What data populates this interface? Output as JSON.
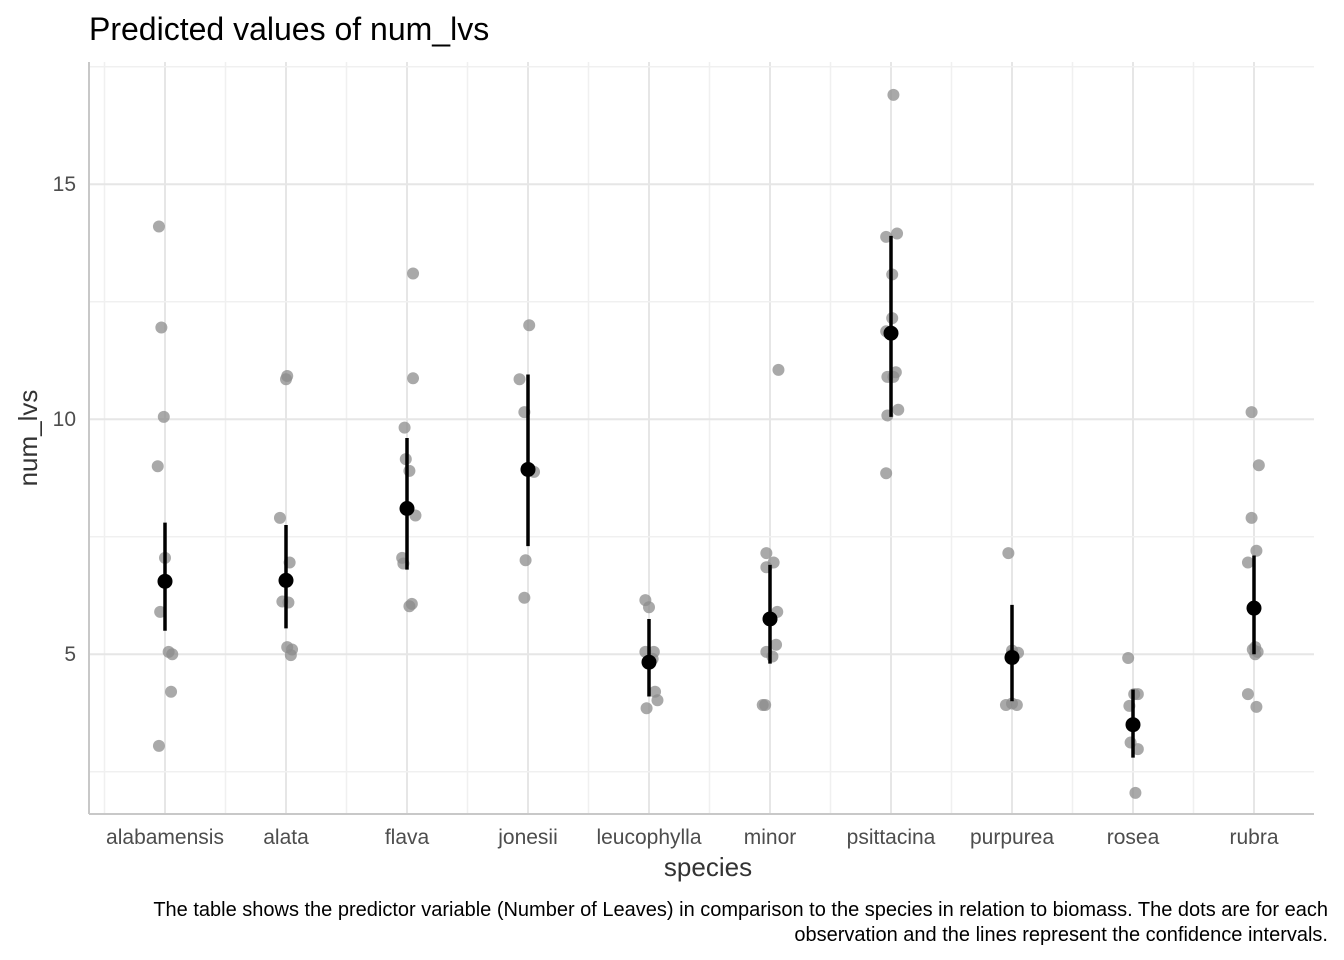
{
  "chart_data": {
    "type": "scatter",
    "title": "Predicted values of num_lvs",
    "xlabel": "species",
    "ylabel": "num_lvs",
    "caption_lines": [
      "The table shows the predictor variable (Number of Leaves) in comparison to the species in relation to biomass. The dots are for each",
      "observation and the lines represent the confidence intervals."
    ],
    "categories": [
      "alabamensis",
      "alata",
      "flava",
      "jonesii",
      "leucophylla",
      "minor",
      "psittacina",
      "purpurea",
      "rosea",
      "rubra"
    ],
    "y_ticks": [
      5,
      10,
      15
    ],
    "ylim": [
      1.6,
      17.6
    ],
    "grid": true,
    "colors": {
      "observation": "#8c8c8c",
      "prediction": "#000000"
    },
    "predicted": [
      6.55,
      6.57,
      8.1,
      8.93,
      4.83,
      5.75,
      11.83,
      4.93,
      3.5,
      5.98
    ],
    "ci_low": [
      5.5,
      5.55,
      6.8,
      7.3,
      4.1,
      4.8,
      10.05,
      4.0,
      2.8,
      5.0
    ],
    "ci_high": [
      7.8,
      7.75,
      9.6,
      10.95,
      5.75,
      6.9,
      13.9,
      6.05,
      4.25,
      7.1
    ],
    "observations": [
      {
        "category": "alabamensis",
        "jitter": [
          -0.05,
          -0.03,
          -0.01,
          -0.06,
          0.0,
          -0.04,
          0.06,
          0.03,
          0.05,
          -0.05
        ],
        "values": [
          14.1,
          11.95,
          10.05,
          9.0,
          7.05,
          5.9,
          5.0,
          5.05,
          4.2,
          3.05
        ]
      },
      {
        "category": "alata",
        "jitter": [
          0.01,
          0.0,
          -0.05,
          0.03,
          -0.03,
          0.02,
          0.01,
          0.05,
          0.04
        ],
        "values": [
          10.92,
          10.85,
          7.9,
          6.95,
          6.12,
          6.1,
          5.15,
          5.1,
          4.98
        ]
      },
      {
        "category": "flava",
        "jitter": [
          0.05,
          0.05,
          -0.02,
          -0.01,
          0.02,
          0.07,
          -0.04,
          -0.03,
          0.02,
          0.04
        ],
        "values": [
          13.1,
          10.87,
          9.82,
          9.15,
          8.9,
          7.95,
          7.05,
          6.93,
          6.02,
          6.07
        ]
      },
      {
        "category": "jonesii",
        "jitter": [
          0.01,
          -0.07,
          -0.03,
          0.0,
          0.05,
          -0.02,
          -0.03
        ],
        "values": [
          12.0,
          10.85,
          10.15,
          8.95,
          8.88,
          7.0,
          6.2
        ]
      },
      {
        "category": "leucophylla",
        "jitter": [
          -0.03,
          0.0,
          -0.03,
          0.04,
          0.03,
          0.05,
          0.07,
          -0.02
        ],
        "values": [
          6.15,
          6.0,
          5.05,
          5.05,
          4.9,
          4.2,
          4.02,
          3.85
        ]
      },
      {
        "category": "minor",
        "jitter": [
          -0.03,
          0.03,
          -0.03,
          0.06,
          -0.03,
          0.05,
          0.02,
          -0.04,
          -0.06,
          0.07
        ],
        "values": [
          7.15,
          6.95,
          6.85,
          5.9,
          5.05,
          5.2,
          4.95,
          3.92,
          3.92,
          11.05
        ]
      },
      {
        "category": "psittacina",
        "jitter": [
          0.02,
          -0.04,
          0.05,
          0.01,
          0.01,
          -0.04,
          0.04,
          -0.03,
          0.02,
          0.06,
          -0.03,
          -0.04
        ],
        "values": [
          16.9,
          13.88,
          13.95,
          13.08,
          12.15,
          11.87,
          11.0,
          10.9,
          10.9,
          10.2,
          10.08,
          8.85
        ]
      },
      {
        "category": "purpurea",
        "jitter": [
          -0.03,
          0.0,
          0.05,
          0.0,
          -0.05,
          0.0,
          0.04
        ],
        "values": [
          7.15,
          5.08,
          5.03,
          5.0,
          3.92,
          3.95,
          3.92
        ]
      },
      {
        "category": "rosea",
        "jitter": [
          -0.04,
          0.01,
          0.04,
          -0.03,
          -0.02,
          0.04,
          0.02
        ],
        "values": [
          4.92,
          4.15,
          4.15,
          3.9,
          3.12,
          2.98,
          2.05
        ]
      },
      {
        "category": "rubra",
        "jitter": [
          -0.02,
          0.04,
          -0.02,
          -0.05,
          0.02,
          0.01,
          -0.01,
          -0.05,
          0.02,
          0.03,
          0.01
        ],
        "values": [
          10.15,
          9.02,
          7.9,
          6.95,
          7.2,
          5.15,
          5.1,
          4.15,
          3.88,
          5.05,
          5.0
        ]
      }
    ]
  }
}
